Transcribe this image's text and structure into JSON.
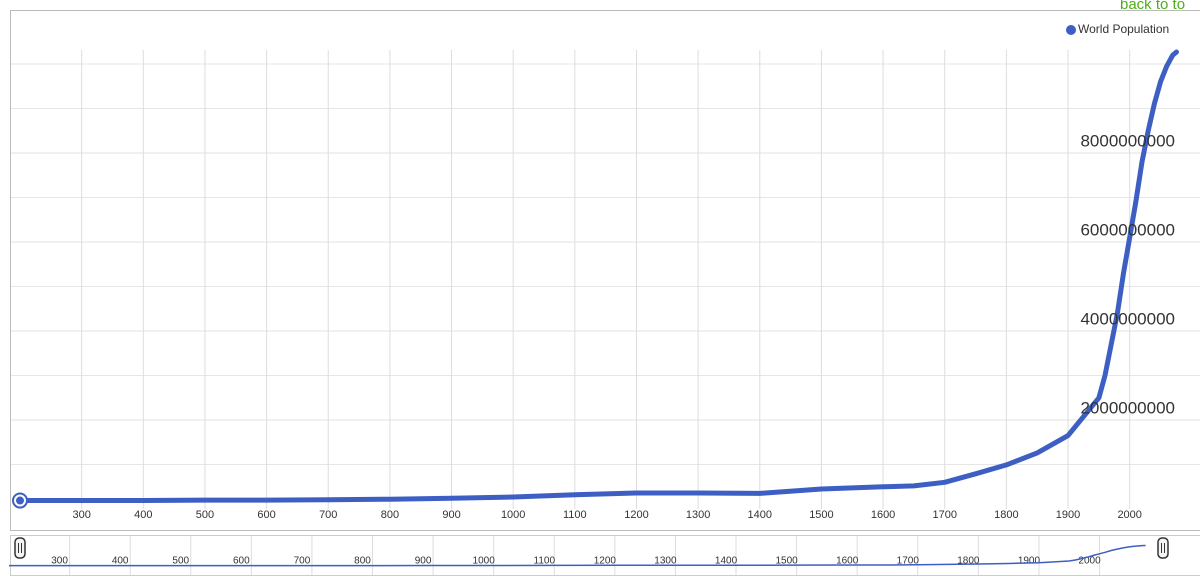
{
  "chart_data": {
    "type": "line",
    "link_text": "back to to",
    "x": [
      200,
      400,
      500,
      600,
      700,
      800,
      900,
      1000,
      1100,
      1200,
      1300,
      1400,
      1500,
      1600,
      1650,
      1700,
      1750,
      1800,
      1850,
      1900,
      1950,
      1960,
      1970,
      1980,
      1990,
      2000,
      2010,
      2020,
      2030,
      2040,
      2050,
      2060,
      2070,
      2076
    ],
    "series": [
      {
        "name": "World Population",
        "color": "#3d5fc4",
        "values": [
          190000000,
          190000000,
          200000000,
          200000000,
          210000000,
          220000000,
          240000000,
          270000000,
          320000000,
          360000000,
          360000000,
          350000000,
          450000000,
          500000000,
          520000000,
          600000000,
          790000000,
          990000000,
          1260000000,
          1650000000,
          2500000000,
          3000000000,
          3700000000,
          4400000000,
          5300000000,
          6100000000,
          6900000000,
          7800000000,
          8500000000,
          9100000000,
          9600000000,
          9950000000,
          10200000000,
          10270000000
        ]
      }
    ],
    "xlim": [
      200,
      2080
    ],
    "xticks": [
      300,
      400,
      500,
      600,
      700,
      800,
      900,
      1000,
      1100,
      1200,
      1300,
      1400,
      1500,
      1600,
      1700,
      1800,
      1900,
      2000
    ],
    "ylim": [
      0,
      11000000000
    ],
    "yticks": [
      2000000000,
      4000000000,
      6000000000,
      8000000000
    ],
    "minor_yticks": [
      1000000000,
      3000000000,
      5000000000,
      7000000000,
      9000000000,
      10000000000
    ],
    "grid": true,
    "legend": "top-right"
  }
}
